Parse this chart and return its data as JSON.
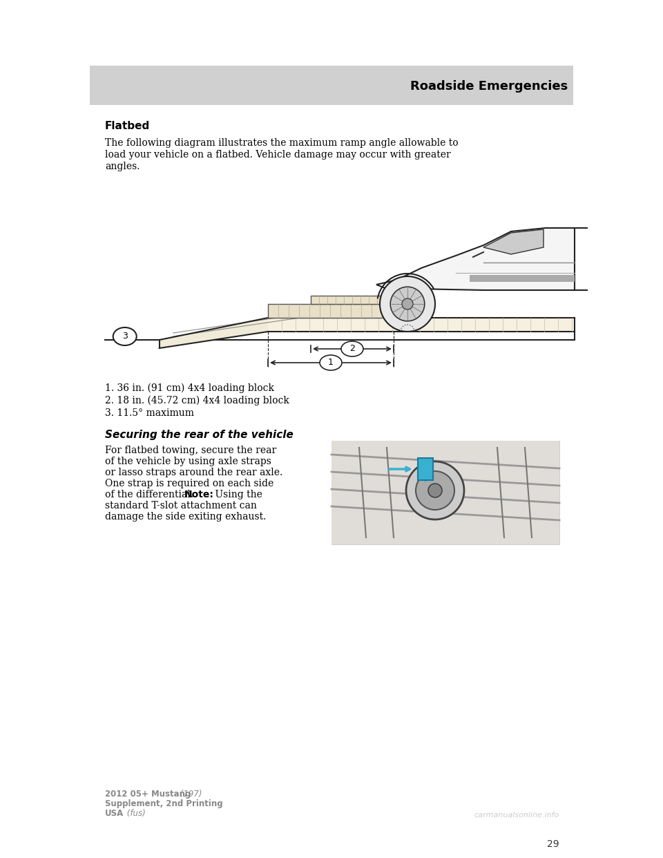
{
  "page_bg": "#ffffff",
  "header_bg": "#d0d0d0",
  "header_text": "Roadside Emergencies",
  "header_text_color": "#000000",
  "header_font_size": 13,
  "page_number": "29",
  "section_title": "Flatbed",
  "para1_line1": "The following diagram illustrates the maximum ramp angle allowable to",
  "para1_line2": "load your vehicle on a flatbed. Vehicle damage may occur with greater",
  "para1_line3": "angles.",
  "list_items": [
    "1. 36 in. (91 cm) 4x4 loading block",
    "2. 18 in. (45.72 cm) 4x4 loading block",
    "3. 11.5° maximum"
  ],
  "securing_title": "Securing the rear of the vehicle",
  "securing_para_lines": [
    "For flatbed towing, secure the rear",
    "of the vehicle by using axle straps",
    "or lasso straps around the rear axle.",
    "One strap is required on each side",
    "of the differential. Note: Using the",
    "standard T-slot attachment can",
    "damage the side exiting exhaust."
  ],
  "securing_para_note_word": "Note:",
  "footer_line1_bold": "2012 05+ Mustang",
  "footer_line1_normal": " (197)",
  "footer_line2": "Supplement, 2nd Printing",
  "footer_line3_bold": "USA",
  "footer_line3_normal": " (fus)",
  "watermark": "carmanualsonline.info",
  "body_font_size": 10,
  "list_font_size": 10,
  "footer_font_size": 8.5
}
